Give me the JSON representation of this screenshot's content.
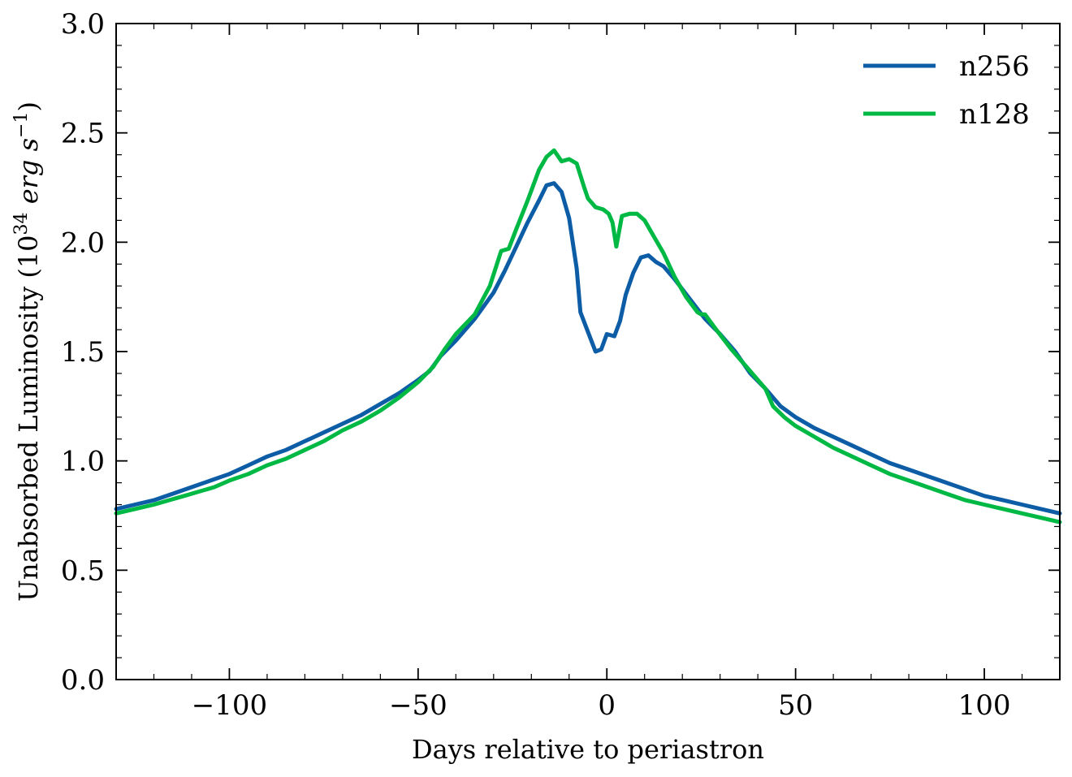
{
  "chart_data": {
    "type": "line",
    "xlabel": "Days relative to periastron",
    "ylabel": "Unabsorbed Luminosity (10",
    "ylabel_exp": "34",
    "ylabel_unit_pre": " erg s",
    "ylabel_unit_exp": "−1",
    "ylabel_close": ")",
    "xlim": [
      -130,
      120
    ],
    "ylim": [
      0,
      3
    ],
    "xticks": [
      -100,
      -50,
      0,
      50,
      100
    ],
    "xtick_labels": [
      "−100",
      "−50",
      "0",
      "50",
      "100"
    ],
    "yticks": [
      0,
      0.5,
      1,
      1.5,
      2,
      2.5,
      3
    ],
    "ytick_labels": [
      "0.0",
      "0.5",
      "1.0",
      "1.5",
      "2.0",
      "2.5",
      "3.0"
    ],
    "grid": false,
    "legend_position": "top-right",
    "series": [
      {
        "name": "n256",
        "color": "#0C5DA5",
        "points": [
          [
            -130,
            0.78
          ],
          [
            -125,
            0.8
          ],
          [
            -120,
            0.82
          ],
          [
            -115,
            0.85
          ],
          [
            -110,
            0.88
          ],
          [
            -105,
            0.91
          ],
          [
            -100,
            0.94
          ],
          [
            -95,
            0.98
          ],
          [
            -90,
            1.02
          ],
          [
            -85,
            1.05
          ],
          [
            -80,
            1.09
          ],
          [
            -75,
            1.13
          ],
          [
            -70,
            1.17
          ],
          [
            -65,
            1.21
          ],
          [
            -60,
            1.26
          ],
          [
            -55,
            1.31
          ],
          [
            -50,
            1.37
          ],
          [
            -47,
            1.41
          ],
          [
            -44,
            1.48
          ],
          [
            -40,
            1.55
          ],
          [
            -35,
            1.65
          ],
          [
            -30,
            1.77
          ],
          [
            -27,
            1.87
          ],
          [
            -24,
            1.98
          ],
          [
            -21,
            2.09
          ],
          [
            -18,
            2.19
          ],
          [
            -16,
            2.26
          ],
          [
            -14,
            2.27
          ],
          [
            -12,
            2.23
          ],
          [
            -10,
            2.11
          ],
          [
            -8,
            1.88
          ],
          [
            -7,
            1.68
          ],
          [
            -5,
            1.59
          ],
          [
            -3,
            1.5
          ],
          [
            -1.5,
            1.51
          ],
          [
            0,
            1.58
          ],
          [
            2,
            1.57
          ],
          [
            3.5,
            1.64
          ],
          [
            5,
            1.76
          ],
          [
            7,
            1.86
          ],
          [
            9,
            1.93
          ],
          [
            11,
            1.94
          ],
          [
            13,
            1.91
          ],
          [
            15,
            1.89
          ],
          [
            18,
            1.83
          ],
          [
            22,
            1.74
          ],
          [
            26,
            1.65
          ],
          [
            30,
            1.58
          ],
          [
            34,
            1.5
          ],
          [
            38,
            1.4
          ],
          [
            42,
            1.33
          ],
          [
            46,
            1.25
          ],
          [
            50,
            1.2
          ],
          [
            55,
            1.15
          ],
          [
            60,
            1.11
          ],
          [
            65,
            1.07
          ],
          [
            70,
            1.03
          ],
          [
            75,
            0.99
          ],
          [
            80,
            0.96
          ],
          [
            85,
            0.93
          ],
          [
            90,
            0.9
          ],
          [
            95,
            0.87
          ],
          [
            100,
            0.84
          ],
          [
            105,
            0.82
          ],
          [
            110,
            0.8
          ],
          [
            115,
            0.78
          ],
          [
            120,
            0.76
          ]
        ]
      },
      {
        "name": "n128",
        "color": "#00B945",
        "points": [
          [
            -130,
            0.76
          ],
          [
            -125,
            0.78
          ],
          [
            -120,
            0.8
          ],
          [
            -116,
            0.82
          ],
          [
            -112,
            0.84
          ],
          [
            -108,
            0.86
          ],
          [
            -104,
            0.88
          ],
          [
            -100,
            0.91
          ],
          [
            -95,
            0.94
          ],
          [
            -90,
            0.98
          ],
          [
            -85,
            1.01
          ],
          [
            -80,
            1.05
          ],
          [
            -75,
            1.09
          ],
          [
            -70,
            1.14
          ],
          [
            -65,
            1.18
          ],
          [
            -60,
            1.23
          ],
          [
            -55,
            1.29
          ],
          [
            -50,
            1.36
          ],
          [
            -46,
            1.43
          ],
          [
            -43,
            1.51
          ],
          [
            -40,
            1.58
          ],
          [
            -35,
            1.67
          ],
          [
            -31,
            1.8
          ],
          [
            -28,
            1.96
          ],
          [
            -26,
            1.97
          ],
          [
            -24,
            2.06
          ],
          [
            -21,
            2.19
          ],
          [
            -18,
            2.33
          ],
          [
            -16,
            2.39
          ],
          [
            -14,
            2.42
          ],
          [
            -12,
            2.37
          ],
          [
            -10,
            2.38
          ],
          [
            -8,
            2.36
          ],
          [
            -6,
            2.25
          ],
          [
            -5,
            2.2
          ],
          [
            -3,
            2.16
          ],
          [
            -1,
            2.15
          ],
          [
            0.5,
            2.13
          ],
          [
            1.5,
            2.09
          ],
          [
            2.5,
            1.98
          ],
          [
            4,
            2.12
          ],
          [
            6,
            2.13
          ],
          [
            8,
            2.13
          ],
          [
            10,
            2.1
          ],
          [
            12,
            2.04
          ],
          [
            15,
            1.95
          ],
          [
            18,
            1.84
          ],
          [
            21,
            1.75
          ],
          [
            24,
            1.68
          ],
          [
            25,
            1.67
          ],
          [
            26,
            1.67
          ],
          [
            29,
            1.6
          ],
          [
            33,
            1.51
          ],
          [
            38,
            1.41
          ],
          [
            42,
            1.33
          ],
          [
            44,
            1.25
          ],
          [
            47,
            1.2
          ],
          [
            50,
            1.16
          ],
          [
            55,
            1.11
          ],
          [
            60,
            1.06
          ],
          [
            65,
            1.02
          ],
          [
            70,
            0.98
          ],
          [
            75,
            0.94
          ],
          [
            80,
            0.91
          ],
          [
            85,
            0.88
          ],
          [
            90,
            0.85
          ],
          [
            95,
            0.82
          ],
          [
            100,
            0.8
          ],
          [
            105,
            0.78
          ],
          [
            110,
            0.76
          ],
          [
            115,
            0.74
          ],
          [
            120,
            0.72
          ]
        ]
      }
    ]
  }
}
